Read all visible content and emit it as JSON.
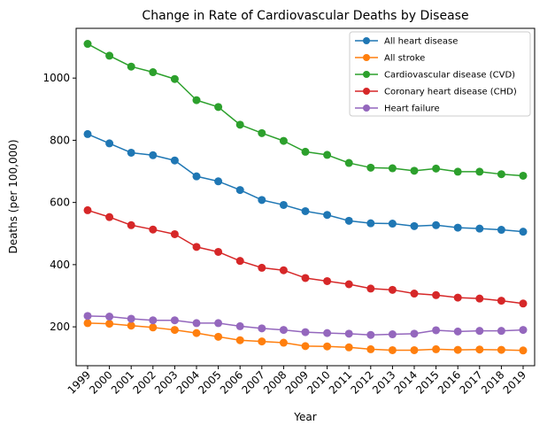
{
  "chart_data": {
    "type": "line",
    "title": "Change in Rate of Cardiovascular Deaths by Disease",
    "xlabel": "Year",
    "ylabel": "Deaths (per 100,000)",
    "categories": [
      "1999",
      "2000",
      "2001",
      "2002",
      "2003",
      "2004",
      "2005",
      "2006",
      "2007",
      "2008",
      "2009",
      "2010",
      "2011",
      "2012",
      "2013",
      "2014",
      "2015",
      "2016",
      "2017",
      "2018",
      "2019"
    ],
    "ylim": [
      75,
      1160
    ],
    "yticks": [
      200,
      400,
      600,
      800,
      1000
    ],
    "ytick_labels": [
      "200",
      "400",
      "600",
      "800",
      "1000"
    ],
    "grid": false,
    "legend_position": "top-right",
    "series": [
      {
        "name": "All heart disease",
        "color": "#1f77b4",
        "values": [
          820,
          790,
          760,
          752,
          735,
          684,
          668,
          640,
          608,
          592,
          572,
          560,
          541,
          533,
          532,
          524,
          527,
          519,
          516,
          512,
          506
        ]
      },
      {
        "name": "All stroke",
        "color": "#ff7f0e",
        "values": [
          212,
          210,
          204,
          198,
          190,
          180,
          168,
          157,
          153,
          149,
          138,
          137,
          134,
          128,
          125,
          125,
          128,
          126,
          127,
          126,
          124
        ]
      },
      {
        "name": "Cardiovascular disease (CVD)",
        "color": "#2ca02c",
        "values": [
          1110,
          1072,
          1037,
          1019,
          997,
          929,
          907,
          850,
          823,
          798,
          763,
          753,
          727,
          712,
          710,
          702,
          709,
          699,
          699,
          691,
          686
        ]
      },
      {
        "name": "Coronary heart disease (CHD)",
        "color": "#d62728",
        "values": [
          575,
          553,
          527,
          513,
          498,
          457,
          441,
          412,
          390,
          382,
          357,
          347,
          337,
          323,
          319,
          307,
          302,
          294,
          291,
          284,
          275
        ]
      },
      {
        "name": "Heart failure",
        "color": "#9467bd",
        "values": [
          235,
          233,
          226,
          221,
          221,
          212,
          212,
          202,
          195,
          190,
          183,
          180,
          178,
          174,
          176,
          178,
          189,
          185,
          187,
          187,
          190
        ]
      }
    ]
  }
}
